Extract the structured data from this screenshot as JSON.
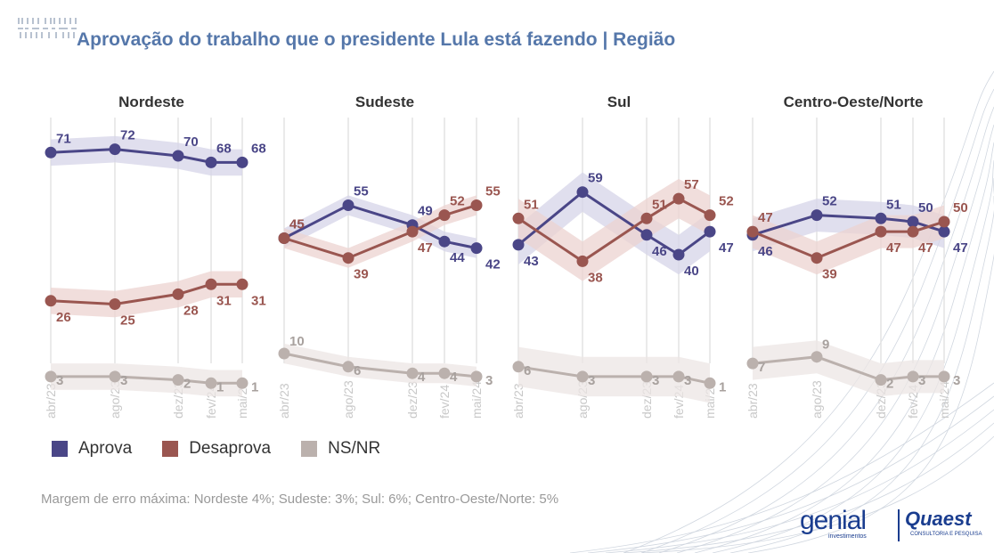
{
  "header": {
    "title": "Aprovação do trabalho que o presidente Lula está fazendo | Região"
  },
  "colors": {
    "aprova": "#4a4687",
    "desaprova": "#9a5650",
    "nsnr": "#bbb1ad",
    "title": "#5577aa"
  },
  "legend": {
    "items": [
      {
        "label": "Aprova",
        "color": "#4a4687"
      },
      {
        "label": "Desaprova",
        "color": "#9a5650"
      },
      {
        "label": "NS/NR",
        "color": "#bbb1ad"
      }
    ]
  },
  "footnote": "Margem de erro máxima: Nordeste 4%; Sudeste: 3%; Sul: 6%; Centro-Oeste/Norte: 5%",
  "logos": {
    "genial_name": "genial",
    "genial_sub": "investimentos",
    "quaest_name": "Quaest",
    "quaest_sub": "CONSULTORIA E PESQUISA"
  },
  "chart_data": [
    {
      "type": "line",
      "title": "Nordeste",
      "x": [
        "abr/23",
        "ago/23",
        "dez/23",
        "fev/24",
        "mai/24"
      ],
      "ylim": [
        0,
        80
      ],
      "series": [
        {
          "name": "Aprova",
          "values": [
            71,
            72,
            70,
            68,
            68
          ]
        },
        {
          "name": "Desaprova",
          "values": [
            26,
            25,
            28,
            31,
            31
          ]
        },
        {
          "name": "NS/NR",
          "values": [
            3,
            3,
            2,
            1,
            1
          ]
        }
      ]
    },
    {
      "type": "line",
      "title": "Sudeste",
      "x": [
        "abr/23",
        "ago/23",
        "dez/23",
        "fev/24",
        "mai/24"
      ],
      "ylim": [
        0,
        80
      ],
      "series": [
        {
          "name": "Aprova",
          "values": [
            45,
            55,
            49,
            44,
            42
          ]
        },
        {
          "name": "Desaprova",
          "values": [
            45,
            39,
            47,
            52,
            55
          ]
        },
        {
          "name": "NS/NR",
          "values": [
            10,
            6,
            4,
            4,
            3
          ]
        }
      ]
    },
    {
      "type": "line",
      "title": "Sul",
      "x": [
        "abr/23",
        "ago/23",
        "dez/23",
        "fev/24",
        "mai/24"
      ],
      "ylim": [
        0,
        80
      ],
      "series": [
        {
          "name": "Aprova",
          "values": [
            43,
            59,
            46,
            40,
            47
          ]
        },
        {
          "name": "Desaprova",
          "values": [
            51,
            38,
            51,
            57,
            52
          ]
        },
        {
          "name": "NS/NR",
          "values": [
            6,
            3,
            3,
            3,
            1
          ]
        }
      ]
    },
    {
      "type": "line",
      "title": "Centro-Oeste/Norte",
      "x": [
        "abr/23",
        "ago/23",
        "dez/23",
        "fev/24",
        "mai/24"
      ],
      "ylim": [
        0,
        80
      ],
      "series": [
        {
          "name": "Aprova",
          "values": [
            46,
            52,
            51,
            50,
            47
          ]
        },
        {
          "name": "Desaprova",
          "values": [
            47,
            39,
            47,
            47,
            50
          ]
        },
        {
          "name": "NS/NR",
          "values": [
            7,
            9,
            2,
            3,
            3
          ]
        }
      ]
    }
  ]
}
